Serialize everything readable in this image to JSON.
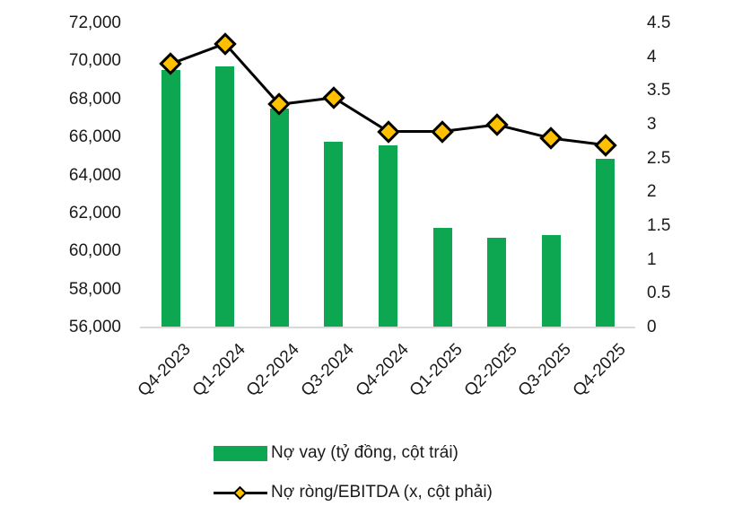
{
  "chart_data": {
    "type": "combo-bar-line",
    "categories": [
      "Q4-2023",
      "Q1-2024",
      "Q2-2024",
      "Q3-2024",
      "Q4-2024",
      "Q1-2025",
      "Q2-2025",
      "Q3-2025",
      "Q4-2025"
    ],
    "series": [
      {
        "name": "Nợ vay (tỷ đồng, cột trái)",
        "type": "bar",
        "axis": "left",
        "color": "#0ca750",
        "values": [
          69550,
          69750,
          67500,
          65750,
          65600,
          61250,
          60700,
          60850,
          64850
        ]
      },
      {
        "name": "Nợ ròng/EBITDA (x, cột phải)",
        "type": "line",
        "axis": "right",
        "line_color": "#000000",
        "marker": "diamond",
        "marker_fill": "#ffc000",
        "marker_border": "#000000",
        "values": [
          3.9,
          4.2,
          3.3,
          3.4,
          2.9,
          2.9,
          3.0,
          2.8,
          2.7
        ]
      }
    ],
    "left_axis": {
      "min": 56000,
      "max": 72000,
      "step": 2000,
      "tick_labels": [
        "72,000",
        "70,000",
        "68,000",
        "66,000",
        "64,000",
        "62,000",
        "60,000",
        "58,000",
        "56,000"
      ]
    },
    "right_axis": {
      "min": 0,
      "max": 4.5,
      "step": 0.5,
      "tick_labels": [
        "4.5",
        "4",
        "3.5",
        "3",
        "2.5",
        "2",
        "1.5",
        "1",
        "0.5",
        "0"
      ]
    },
    "legend": {
      "position": "bottom",
      "items": [
        {
          "label": "Nợ vay (tỷ đồng, cột trái)",
          "swatch": "bar"
        },
        {
          "label": "Nợ ròng/EBITDA (x, cột phải)",
          "swatch": "line-diamond"
        }
      ]
    },
    "grid": "off",
    "title": "",
    "colors": {
      "bar": "#0ca750",
      "line": "#000000",
      "marker_fill": "#ffc000",
      "axis_line": "#d9d9d9",
      "text": "#1a1a1a"
    }
  }
}
